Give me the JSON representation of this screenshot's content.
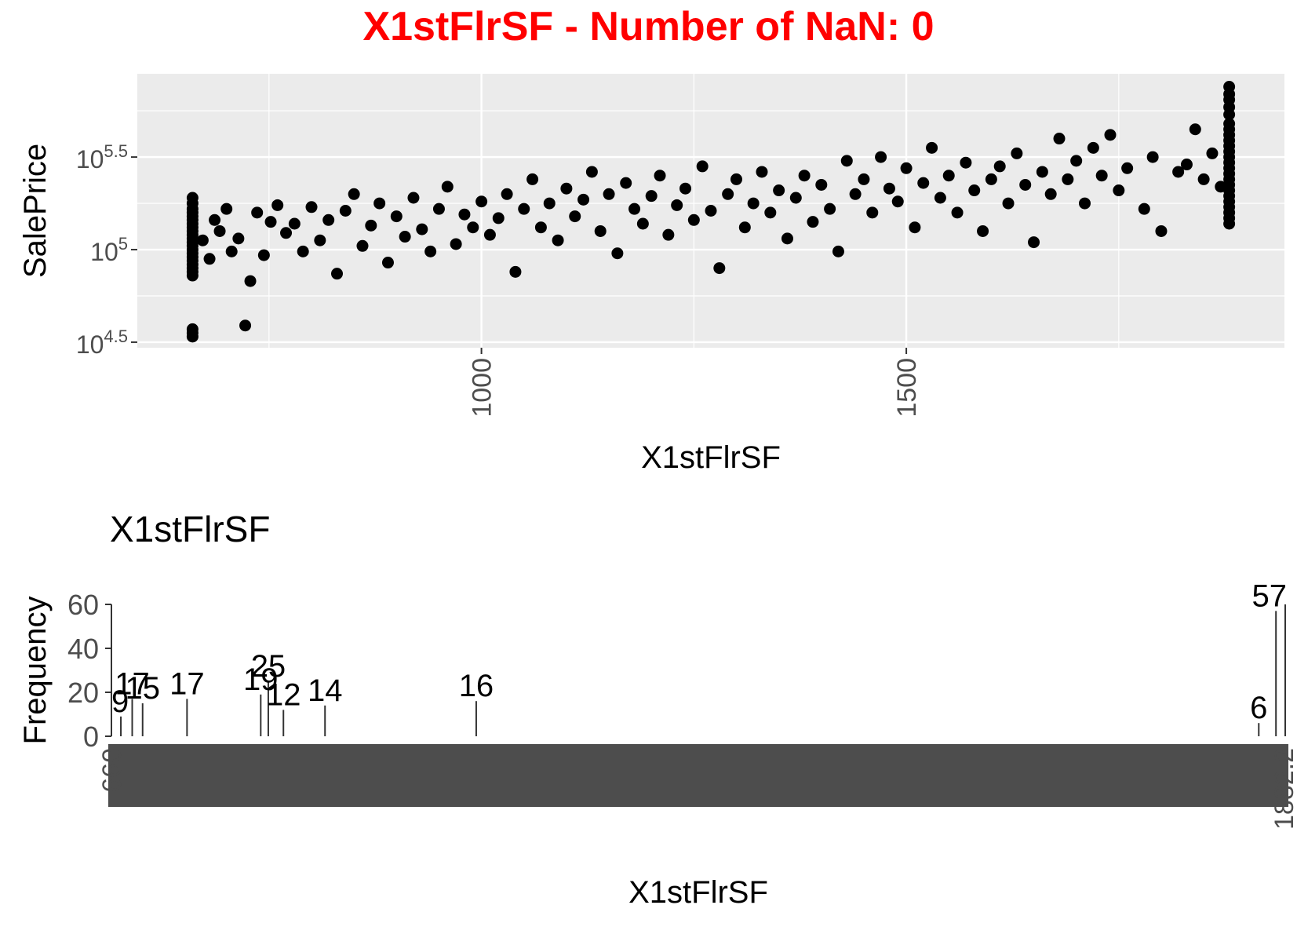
{
  "figure": {
    "title": "X1stFlrSF - Number of NaN: 0",
    "title_color": "#ff0000"
  },
  "chart_data": [
    {
      "type": "scatter",
      "title": "",
      "xlabel": "X1stFlrSF",
      "ylabel": "SalePrice",
      "x_ticks": [
        {
          "value": 1000,
          "label": "1000"
        },
        {
          "value": 1500,
          "label": "1500"
        }
      ],
      "y_scale": "log10",
      "y_ticks": [
        {
          "value": 4.5,
          "base": "10",
          "exp": "4.5"
        },
        {
          "value": 5.0,
          "base": "10",
          "exp": "5"
        },
        {
          "value": 5.5,
          "base": "10",
          "exp": "5.5"
        }
      ],
      "xlim": [
        595,
        1945
      ],
      "ylim_log10": [
        4.47,
        5.95
      ],
      "grid": true,
      "panel_background": "#ebebeb",
      "point_color": "#000000",
      "points": [
        [
          660,
          4.53
        ],
        [
          660,
          4.55
        ],
        [
          660,
          4.57
        ],
        [
          660,
          4.86
        ],
        [
          660,
          4.88
        ],
        [
          660,
          4.9
        ],
        [
          660,
          4.92
        ],
        [
          660,
          4.94
        ],
        [
          660,
          4.96
        ],
        [
          660,
          4.98
        ],
        [
          660,
          5.0
        ],
        [
          660,
          5.02
        ],
        [
          660,
          5.04
        ],
        [
          660,
          5.06
        ],
        [
          660,
          5.08
        ],
        [
          660,
          5.1
        ],
        [
          660,
          5.12
        ],
        [
          660,
          5.14
        ],
        [
          660,
          5.16
        ],
        [
          660,
          5.18
        ],
        [
          660,
          5.2
        ],
        [
          660,
          5.22
        ],
        [
          660,
          5.25
        ],
        [
          660,
          5.28
        ],
        [
          672,
          5.05
        ],
        [
          680,
          4.95
        ],
        [
          686,
          5.16
        ],
        [
          692,
          5.1
        ],
        [
          700,
          5.22
        ],
        [
          706,
          4.99
        ],
        [
          714,
          5.06
        ],
        [
          722,
          4.59
        ],
        [
          728,
          4.83
        ],
        [
          736,
          5.2
        ],
        [
          744,
          4.97
        ],
        [
          752,
          5.15
        ],
        [
          760,
          5.24
        ],
        [
          770,
          5.09
        ],
        [
          780,
          5.14
        ],
        [
          790,
          4.99
        ],
        [
          800,
          5.23
        ],
        [
          810,
          5.05
        ],
        [
          820,
          5.16
        ],
        [
          830,
          4.87
        ],
        [
          840,
          5.21
        ],
        [
          850,
          5.3
        ],
        [
          860,
          5.02
        ],
        [
          870,
          5.13
        ],
        [
          880,
          5.25
        ],
        [
          890,
          4.93
        ],
        [
          900,
          5.18
        ],
        [
          910,
          5.07
        ],
        [
          920,
          5.28
        ],
        [
          930,
          5.11
        ],
        [
          940,
          4.99
        ],
        [
          950,
          5.22
        ],
        [
          960,
          5.34
        ],
        [
          970,
          5.03
        ],
        [
          980,
          5.19
        ],
        [
          990,
          5.12
        ],
        [
          1000,
          5.26
        ],
        [
          1010,
          5.08
        ],
        [
          1020,
          5.17
        ],
        [
          1030,
          5.3
        ],
        [
          1040,
          4.88
        ],
        [
          1050,
          5.22
        ],
        [
          1060,
          5.38
        ],
        [
          1070,
          5.12
        ],
        [
          1080,
          5.25
        ],
        [
          1090,
          5.05
        ],
        [
          1100,
          5.33
        ],
        [
          1110,
          5.18
        ],
        [
          1120,
          5.27
        ],
        [
          1130,
          5.42
        ],
        [
          1140,
          5.1
        ],
        [
          1150,
          5.3
        ],
        [
          1160,
          4.98
        ],
        [
          1170,
          5.36
        ],
        [
          1180,
          5.22
        ],
        [
          1190,
          5.14
        ],
        [
          1200,
          5.29
        ],
        [
          1210,
          5.4
        ],
        [
          1220,
          5.08
        ],
        [
          1230,
          5.24
        ],
        [
          1240,
          5.33
        ],
        [
          1250,
          5.16
        ],
        [
          1260,
          5.45
        ],
        [
          1270,
          5.21
        ],
        [
          1280,
          4.9
        ],
        [
          1290,
          5.3
        ],
        [
          1300,
          5.38
        ],
        [
          1310,
          5.12
        ],
        [
          1320,
          5.25
        ],
        [
          1330,
          5.42
        ],
        [
          1340,
          5.2
        ],
        [
          1350,
          5.32
        ],
        [
          1360,
          5.06
        ],
        [
          1370,
          5.28
        ],
        [
          1380,
          5.4
        ],
        [
          1390,
          5.15
        ],
        [
          1400,
          5.35
        ],
        [
          1410,
          5.22
        ],
        [
          1420,
          4.99
        ],
        [
          1430,
          5.48
        ],
        [
          1440,
          5.3
        ],
        [
          1450,
          5.38
        ],
        [
          1460,
          5.2
        ],
        [
          1470,
          5.5
        ],
        [
          1480,
          5.33
        ],
        [
          1490,
          5.26
        ],
        [
          1500,
          5.44
        ],
        [
          1510,
          5.12
        ],
        [
          1520,
          5.36
        ],
        [
          1530,
          5.55
        ],
        [
          1540,
          5.28
        ],
        [
          1550,
          5.4
        ],
        [
          1560,
          5.2
        ],
        [
          1570,
          5.47
        ],
        [
          1580,
          5.32
        ],
        [
          1590,
          5.1
        ],
        [
          1600,
          5.38
        ],
        [
          1610,
          5.45
        ],
        [
          1620,
          5.25
        ],
        [
          1630,
          5.52
        ],
        [
          1640,
          5.35
        ],
        [
          1650,
          5.04
        ],
        [
          1660,
          5.42
        ],
        [
          1670,
          5.3
        ],
        [
          1680,
          5.6
        ],
        [
          1690,
          5.38
        ],
        [
          1700,
          5.48
        ],
        [
          1710,
          5.25
        ],
        [
          1720,
          5.55
        ],
        [
          1730,
          5.4
        ],
        [
          1740,
          5.62
        ],
        [
          1750,
          5.32
        ],
        [
          1760,
          5.44
        ],
        [
          1780,
          5.22
        ],
        [
          1790,
          5.5
        ],
        [
          1800,
          5.1
        ],
        [
          1820,
          5.42
        ],
        [
          1830,
          5.46
        ],
        [
          1840,
          5.65
        ],
        [
          1850,
          5.38
        ],
        [
          1860,
          5.52
        ],
        [
          1870,
          5.34
        ],
        [
          1880,
          5.14
        ],
        [
          1880,
          5.17
        ],
        [
          1880,
          5.2
        ],
        [
          1880,
          5.23
        ],
        [
          1880,
          5.26
        ],
        [
          1880,
          5.29
        ],
        [
          1880,
          5.32
        ],
        [
          1880,
          5.35
        ],
        [
          1880,
          5.38
        ],
        [
          1880,
          5.41
        ],
        [
          1880,
          5.44
        ],
        [
          1880,
          5.47
        ],
        [
          1880,
          5.5
        ],
        [
          1880,
          5.53
        ],
        [
          1880,
          5.56
        ],
        [
          1880,
          5.59
        ],
        [
          1880,
          5.62
        ],
        [
          1880,
          5.65
        ],
        [
          1880,
          5.68
        ],
        [
          1880,
          5.73
        ],
        [
          1880,
          5.77
        ],
        [
          1880,
          5.81
        ],
        [
          1880,
          5.84
        ],
        [
          1880,
          5.88
        ]
      ]
    },
    {
      "type": "bar",
      "title": "X1stFlrSF",
      "xlabel": "X1stFlrSF",
      "ylabel": "Frequency",
      "y_ticks": [
        0,
        20,
        40,
        60
      ],
      "ylim": [
        0,
        60
      ],
      "x_tick_first": "660",
      "x_tick_last": "1882.2",
      "bar_color": "#333333",
      "value_labels": [
        {
          "category": 660,
          "value": 9,
          "label": "9"
        },
        {
          "category": 672,
          "value": 17,
          "label": "17"
        },
        {
          "category": 683,
          "value": 15,
          "label": "15"
        },
        {
          "category": 730,
          "value": 17,
          "label": "17"
        },
        {
          "category": 816,
          "value": 25,
          "label": "25"
        },
        {
          "category": 808,
          "value": 19,
          "label": "19"
        },
        {
          "category": 832,
          "value": 12,
          "label": "12"
        },
        {
          "category": 876,
          "value": 14,
          "label": "14"
        },
        {
          "category": 1036,
          "value": 16,
          "label": "16"
        },
        {
          "category": 1864,
          "value": 6,
          "label": "6"
        },
        {
          "category": 1882.2,
          "value": 57,
          "label": "57"
        }
      ]
    }
  ]
}
